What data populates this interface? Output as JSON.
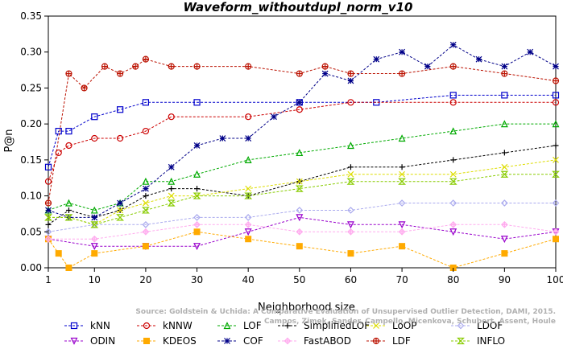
{
  "chart_data": {
    "type": "line",
    "title": "Waveform_withoutdupl_norm_v10",
    "xlabel": "Neighborhood size",
    "ylabel": "P@n",
    "xlim": [
      1,
      100
    ],
    "ylim": [
      0,
      0.35
    ],
    "x_ticks": [
      1,
      10,
      20,
      30,
      40,
      50,
      60,
      70,
      80,
      90,
      100
    ],
    "y_ticks": [
      0.0,
      0.05,
      0.1,
      0.15,
      0.2,
      0.25,
      0.3,
      0.35
    ],
    "grid": false,
    "legend_position": "bottom",
    "credit": [
      "Source: Goldstein & Uchida: A Comparative Evaluation of Unsupervised Outlier Detection, DAMI, 2015.",
      "Campos, Zimek, Sander, Campello, Micenkova, Schubert, Assent, Houle"
    ],
    "series": [
      {
        "name": "kNN",
        "color": "#0000cc",
        "marker": "square",
        "x": [
          1,
          3,
          5,
          10,
          15,
          20,
          30,
          50,
          65,
          80,
          90,
          100
        ],
        "values": [
          0.14,
          0.19,
          0.19,
          0.21,
          0.22,
          0.23,
          0.23,
          0.23,
          0.23,
          0.24,
          0.24,
          0.24
        ]
      },
      {
        "name": "kNNW",
        "color": "#cc0000",
        "marker": "circle",
        "x": [
          1,
          3,
          5,
          10,
          15,
          20,
          25,
          40,
          50,
          60,
          80,
          100
        ],
        "values": [
          0.12,
          0.16,
          0.17,
          0.18,
          0.18,
          0.19,
          0.21,
          0.21,
          0.22,
          0.23,
          0.23,
          0.23
        ]
      },
      {
        "name": "LOF",
        "color": "#00aa00",
        "marker": "triangle-up",
        "x": [
          1,
          5,
          10,
          15,
          20,
          25,
          30,
          40,
          50,
          60,
          70,
          80,
          90,
          100
        ],
        "values": [
          0.08,
          0.09,
          0.08,
          0.09,
          0.12,
          0.12,
          0.13,
          0.15,
          0.16,
          0.17,
          0.18,
          0.19,
          0.2,
          0.2
        ]
      },
      {
        "name": "SimplifiedLOF",
        "color": "#000000",
        "marker": "plus",
        "x": [
          1,
          5,
          10,
          15,
          20,
          25,
          30,
          40,
          50,
          60,
          70,
          80,
          90,
          100
        ],
        "values": [
          0.06,
          0.08,
          0.07,
          0.08,
          0.1,
          0.11,
          0.11,
          0.1,
          0.12,
          0.14,
          0.14,
          0.15,
          0.16,
          0.17
        ]
      },
      {
        "name": "LoOP",
        "color": "#dddd00",
        "marker": "x",
        "x": [
          1,
          5,
          10,
          15,
          20,
          25,
          30,
          40,
          50,
          60,
          70,
          80,
          90,
          100
        ],
        "values": [
          0.07,
          0.07,
          0.06,
          0.08,
          0.09,
          0.1,
          0.1,
          0.11,
          0.12,
          0.13,
          0.13,
          0.13,
          0.14,
          0.15
        ]
      },
      {
        "name": "LDOF",
        "color": "#aaaaee",
        "marker": "diamond",
        "x": [
          1,
          10,
          20,
          30,
          40,
          50,
          60,
          70,
          80,
          90,
          100
        ],
        "values": [
          0.05,
          0.06,
          0.06,
          0.07,
          0.07,
          0.08,
          0.08,
          0.09,
          0.09,
          0.09,
          0.09
        ]
      },
      {
        "name": "ODIN",
        "color": "#9900cc",
        "marker": "triangle-down",
        "x": [
          1,
          10,
          20,
          30,
          40,
          50,
          60,
          70,
          80,
          90,
          100
        ],
        "values": [
          0.04,
          0.03,
          0.03,
          0.03,
          0.05,
          0.07,
          0.06,
          0.06,
          0.05,
          0.04,
          0.05
        ]
      },
      {
        "name": "KDEOS",
        "color": "#ffaa00",
        "marker": "square-filled",
        "x": [
          1,
          3,
          5,
          10,
          20,
          30,
          40,
          50,
          60,
          70,
          80,
          90,
          100
        ],
        "values": [
          0.04,
          0.02,
          0.0,
          0.02,
          0.03,
          0.05,
          0.04,
          0.03,
          0.02,
          0.03,
          0.0,
          0.02,
          0.04
        ]
      },
      {
        "name": "COF",
        "color": "#000088",
        "marker": "asterisk",
        "x": [
          1,
          5,
          10,
          15,
          20,
          25,
          30,
          35,
          40,
          45,
          50,
          55,
          60,
          65,
          70,
          75,
          80,
          85,
          90,
          95,
          100
        ],
        "values": [
          0.08,
          0.07,
          0.07,
          0.09,
          0.11,
          0.14,
          0.17,
          0.18,
          0.18,
          0.21,
          0.23,
          0.27,
          0.26,
          0.29,
          0.3,
          0.28,
          0.31,
          0.29,
          0.28,
          0.3,
          0.28
        ]
      },
      {
        "name": "FastABOD",
        "color": "#ffaaee",
        "marker": "diamond-plus",
        "x": [
          1,
          10,
          20,
          30,
          40,
          50,
          60,
          70,
          80,
          90,
          100
        ],
        "values": [
          0.04,
          0.04,
          0.05,
          0.06,
          0.06,
          0.05,
          0.05,
          0.05,
          0.06,
          0.06,
          0.05
        ]
      },
      {
        "name": "LDF",
        "color": "#bb1100",
        "marker": "circle-plus",
        "x": [
          1,
          5,
          8,
          12,
          15,
          18,
          20,
          25,
          30,
          40,
          50,
          55,
          60,
          70,
          80,
          90,
          100
        ],
        "values": [
          0.09,
          0.27,
          0.25,
          0.28,
          0.27,
          0.28,
          0.29,
          0.28,
          0.28,
          0.28,
          0.27,
          0.28,
          0.27,
          0.27,
          0.28,
          0.27,
          0.26
        ]
      },
      {
        "name": "INFLO",
        "color": "#88cc00",
        "marker": "hourglass",
        "x": [
          1,
          5,
          10,
          15,
          20,
          25,
          30,
          40,
          50,
          60,
          70,
          80,
          90,
          100
        ],
        "values": [
          0.07,
          0.07,
          0.06,
          0.07,
          0.08,
          0.09,
          0.1,
          0.1,
          0.11,
          0.12,
          0.12,
          0.12,
          0.13,
          0.13
        ]
      }
    ]
  }
}
